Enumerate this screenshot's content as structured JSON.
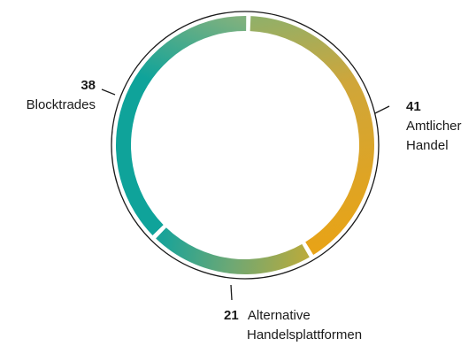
{
  "chart_data": {
    "type": "pie",
    "variant": "donut",
    "title": "",
    "slices": [
      {
        "value": 41,
        "value_label": "41",
        "label_lines": [
          "Amtlicher",
          "Handel"
        ]
      },
      {
        "value": 21,
        "value_label": "21",
        "label_lines": [
          "Alternative",
          "Handelsplattformen"
        ]
      },
      {
        "value": 38,
        "value_label": "38",
        "label_lines": [
          "Blocktrades"
        ]
      }
    ],
    "colors": {
      "start": "#e8a316",
      "end": "#0fa39a",
      "frame": "#1a1a1a"
    }
  }
}
